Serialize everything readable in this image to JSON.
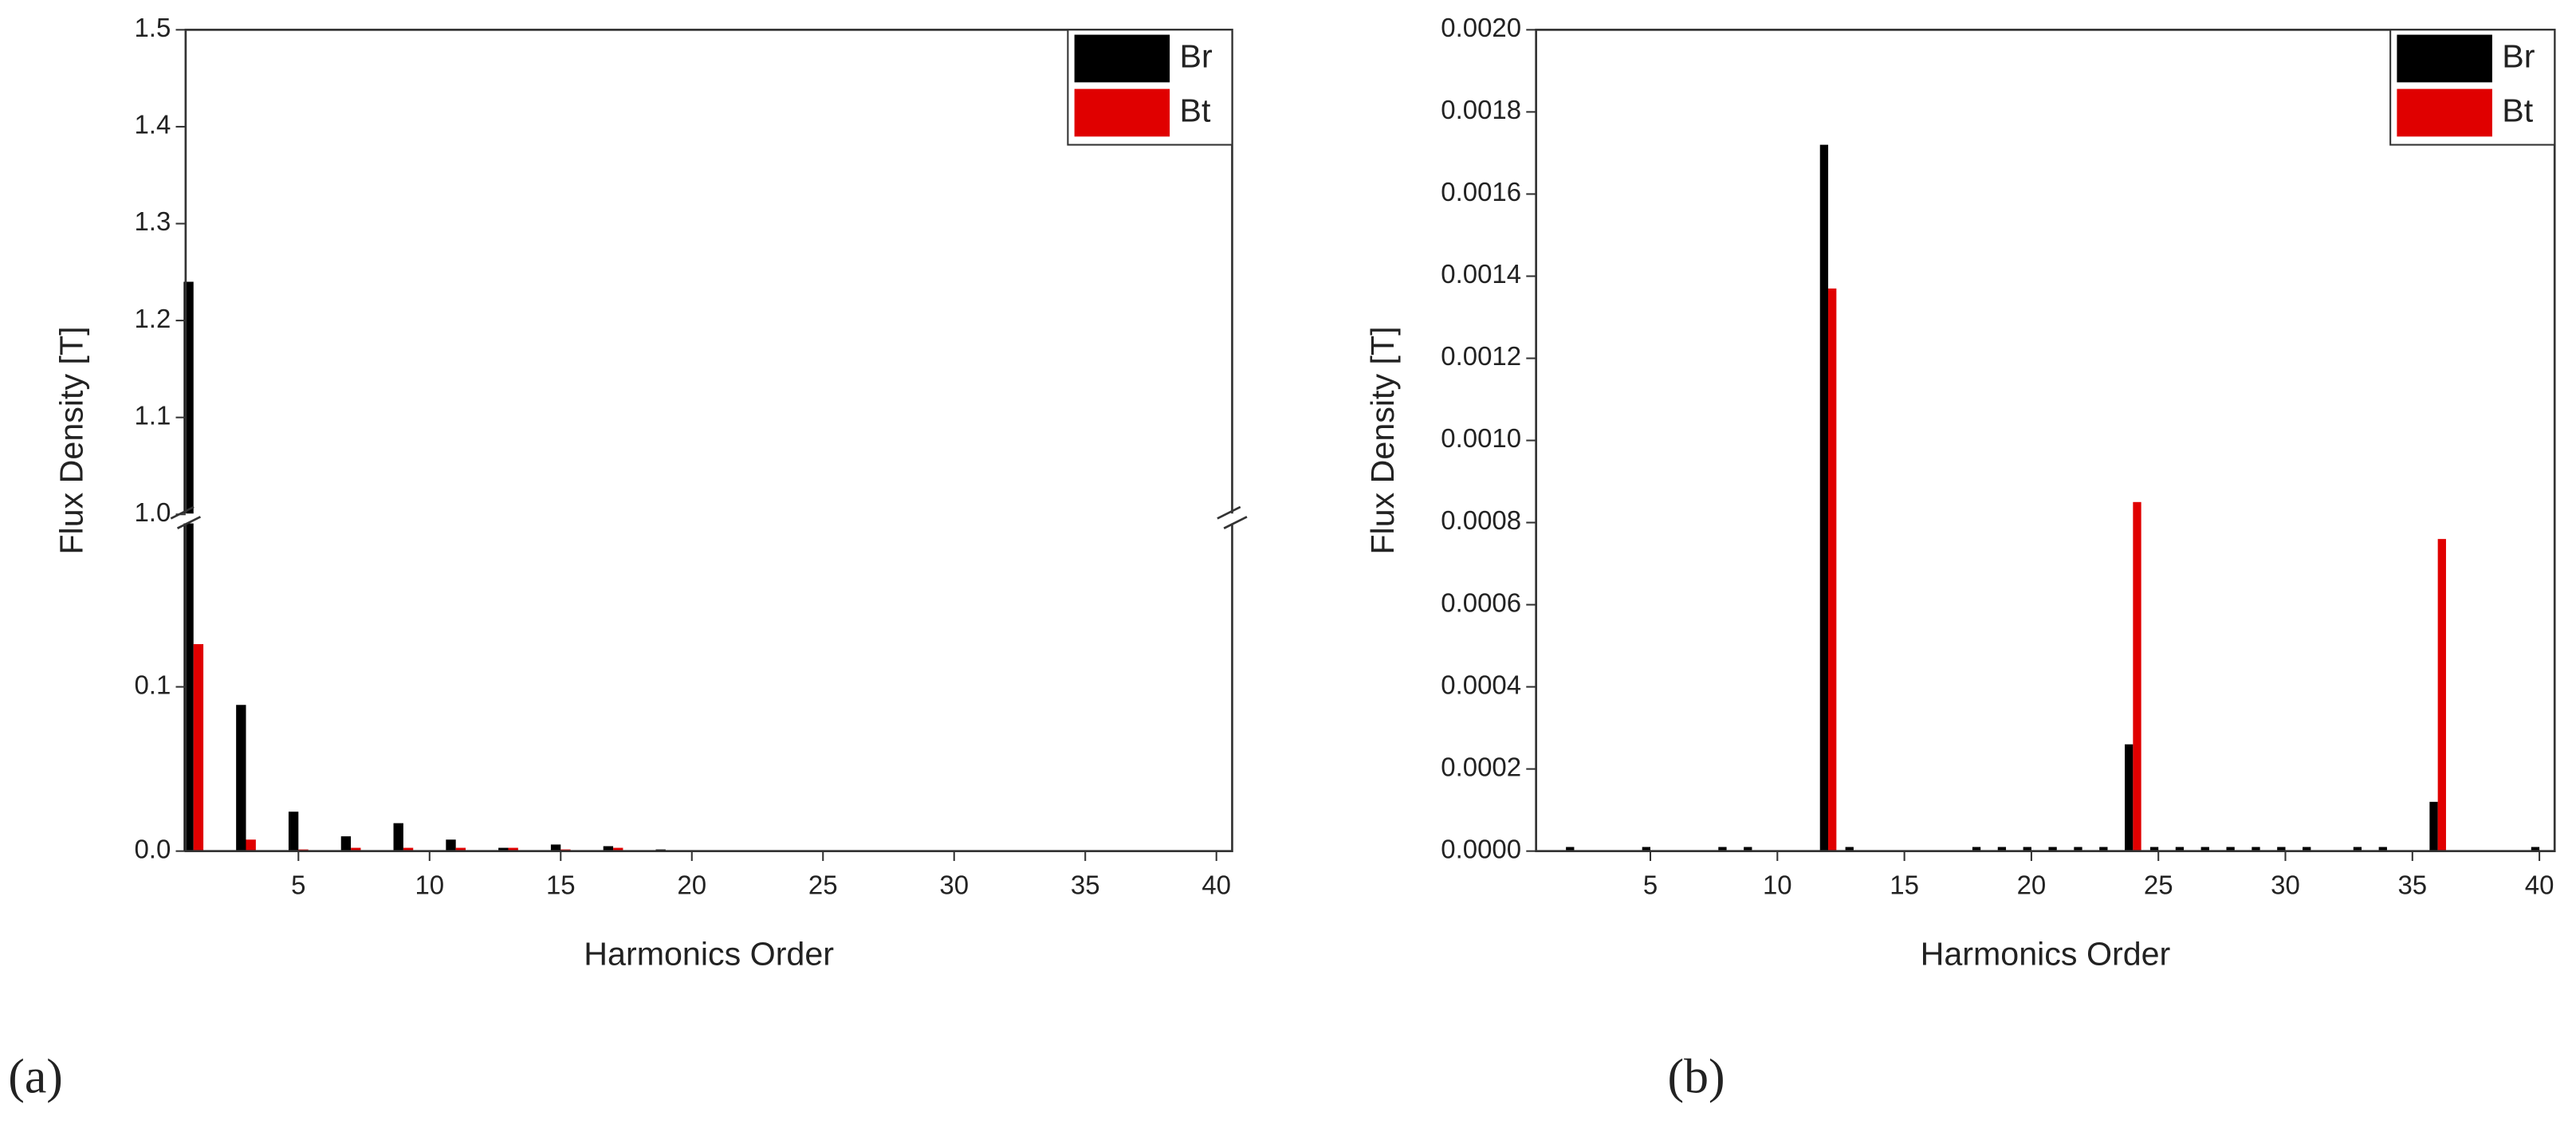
{
  "chart_data": [
    {
      "type": "bar",
      "panel_label": "(a)",
      "xlabel": "Harmonics Order",
      "ylabel": "Flux Density [T]",
      "x": [
        1,
        3,
        5,
        7,
        9,
        11,
        13,
        15,
        17,
        19,
        21,
        23,
        25,
        27,
        29,
        31,
        33,
        35,
        37,
        39
      ],
      "series": [
        {
          "name": "Br",
          "color": "#000000",
          "values": [
            1.24,
            0.089,
            0.024,
            0.009,
            0.017,
            0.007,
            0.002,
            0.004,
            0.003,
            0.001,
            0,
            0,
            0,
            0,
            0,
            0,
            0,
            0,
            0,
            0
          ]
        },
        {
          "name": "Bt",
          "color": "#e00000",
          "values": [
            0.126,
            0.007,
            0.001,
            0.002,
            0.002,
            0.002,
            0.002,
            0.001,
            0.002,
            0,
            0,
            0,
            0,
            0,
            0,
            0,
            0,
            0,
            0,
            0
          ]
        }
      ],
      "xlim": [
        0.7,
        40.6
      ],
      "xticks": [
        5,
        10,
        15,
        20,
        25,
        30,
        35,
        40
      ],
      "ylim": [
        0,
        1.5
      ],
      "ybreak": [
        0.2,
        1.0
      ],
      "yticks": [
        {
          "value": 0,
          "label": "0.0"
        },
        0.1,
        {
          "value": 1,
          "label": "1.0"
        },
        1.1,
        1.2,
        1.3,
        1.4,
        1.5
      ],
      "legend": "upper right"
    },
    {
      "type": "bar",
      "panel_label": "(b)",
      "xlabel": "Harmonics Order",
      "ylabel": "Flux Density [T]",
      "x": [
        1,
        2,
        3,
        4,
        5,
        6,
        7,
        8,
        9,
        10,
        11,
        12,
        13,
        14,
        15,
        16,
        17,
        18,
        19,
        20,
        21,
        22,
        23,
        24,
        25,
        26,
        27,
        28,
        29,
        30,
        31,
        32,
        33,
        34,
        35,
        36,
        37,
        38,
        39,
        40
      ],
      "series": [
        {
          "name": "Br",
          "color": "#000000",
          "values": [
            0,
            1e-05,
            0,
            0,
            1e-05,
            0,
            0,
            1e-05,
            1e-05,
            0,
            0,
            0.00172,
            1e-05,
            0,
            0,
            0,
            0,
            1e-05,
            1e-05,
            1e-05,
            1e-05,
            1e-05,
            1e-05,
            0.00026,
            1e-05,
            1e-05,
            1e-05,
            1e-05,
            1e-05,
            1e-05,
            1e-05,
            0,
            1e-05,
            1e-05,
            0,
            0.00012,
            0,
            0,
            0,
            1e-05
          ]
        },
        {
          "name": "Bt",
          "color": "#e00000",
          "values": [
            0,
            0,
            0,
            0,
            0,
            0,
            0,
            0,
            0,
            0,
            0,
            0.00137,
            0,
            0,
            0,
            0,
            0,
            0,
            0,
            0,
            0,
            0,
            0,
            0.00085,
            0,
            0,
            0,
            0,
            0,
            0,
            0,
            0,
            0,
            0,
            0,
            0.00076,
            0,
            0,
            0,
            0
          ]
        }
      ],
      "xlim": [
        0.5,
        40.6
      ],
      "xticks": [
        5,
        10,
        15,
        20,
        25,
        30,
        35,
        40
      ],
      "ylim": [
        0,
        0.002
      ],
      "yticks": [
        {
          "value": 0,
          "label": "0.0000"
        },
        {
          "value": 0.0002,
          "label": "0.0002"
        },
        {
          "value": 0.0004,
          "label": "0.0004"
        },
        {
          "value": 0.0006,
          "label": "0.0006"
        },
        {
          "value": 0.0008,
          "label": "0.0008"
        },
        {
          "value": 0.001,
          "label": "0.0010"
        },
        {
          "value": 0.0012,
          "label": "0.0012"
        },
        {
          "value": 0.0014,
          "label": "0.0014"
        },
        {
          "value": 0.0016,
          "label": "0.0016"
        },
        {
          "value": 0.0018,
          "label": "0.0018"
        },
        {
          "value": 0.002,
          "label": "0.0020"
        }
      ],
      "legend": "upper right"
    }
  ]
}
